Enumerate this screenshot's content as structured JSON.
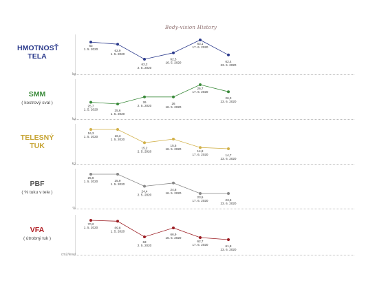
{
  "title": "Body-vision History",
  "chart_data": [
    {
      "type": "line",
      "label_lines": [
        "HMOTNOSŤ",
        "TELA"
      ],
      "sublabel": "",
      "unit": "kg",
      "color": "#2b3a8c",
      "label_color": "#2b3a8c",
      "categories": [
        "1. 5. 2020",
        "1. 5. 2020",
        "2. 5. 2020",
        "16. 5. 2020",
        "17. 6. 2020",
        "23. 6. 2020"
      ],
      "values": [
        63,
        62.9,
        62.2,
        62.5,
        63.1,
        62.4
      ],
      "value_labels": [
        "63",
        "62,9",
        "62,2",
        "62,5",
        "63,1",
        "62,4"
      ]
    },
    {
      "type": "line",
      "label_lines": [
        "SMM"
      ],
      "sublabel": "( kostrový sval )",
      "unit": "kg",
      "color": "#3a8a3a",
      "label_color": "#3a8a3a",
      "categories": [
        "1. 5. 2020",
        "1. 5. 2020",
        "2. 5. 2020",
        "16. 5. 2020",
        "17. 6. 2020",
        "23. 6. 2020"
      ],
      "values": [
        25.7,
        25.6,
        26,
        26,
        26.7,
        26.3
      ],
      "value_labels": [
        "25,7",
        "25,6",
        "26",
        "26",
        "26,7",
        "26,3"
      ]
    },
    {
      "type": "line",
      "label_lines": [
        "TELESNÝ",
        "TUK"
      ],
      "sublabel": "",
      "unit": "kg",
      "color": "#d2b14a",
      "label_color": "#c6a434",
      "categories": [
        "1. 5. 2020",
        "1. 5. 2020",
        "2. 5. 2020",
        "16. 5. 2020",
        "17. 6. 2020",
        "23. 6. 2020"
      ],
      "values": [
        16.3,
        16.3,
        15.2,
        15.5,
        14.8,
        14.7
      ],
      "value_labels": [
        "16,3",
        "16,3",
        "15,2",
        "15,5",
        "14,8",
        "14,7"
      ]
    },
    {
      "type": "line",
      "label_lines": [
        "PBF"
      ],
      "sublabel": "( % tuku v tele )",
      "unit": "%",
      "color": "#888888",
      "label_color": "#555555",
      "categories": [
        "1. 5. 2020",
        "1. 5. 2020",
        "2. 5. 2020",
        "16. 5. 2020",
        "17. 6. 2020",
        "23. 6. 2020"
      ],
      "values": [
        25.9,
        25.9,
        24.4,
        24.8,
        23.5,
        23.5
      ],
      "value_labels": [
        "25,9",
        "25,9",
        "24,4",
        "24,8",
        "23,5",
        "23,5"
      ]
    },
    {
      "type": "line",
      "label_lines": [
        "VFA"
      ],
      "sublabel": "( útrobný tuk )",
      "unit": "cm2/level",
      "color": "#9b1c22",
      "label_color": "#b01c22",
      "categories": [
        "1. 5. 2020",
        "1. 5. 2020",
        "2. 5. 2020",
        "16. 5. 2020",
        "17. 6. 2020",
        "23. 6. 2020"
      ],
      "values": [
        70.2,
        69.8,
        63,
        66.9,
        62.7,
        61.8
      ],
      "value_labels": [
        "70,2",
        "69,8",
        "63",
        "66,9",
        "62,7",
        "61,8"
      ]
    }
  ]
}
